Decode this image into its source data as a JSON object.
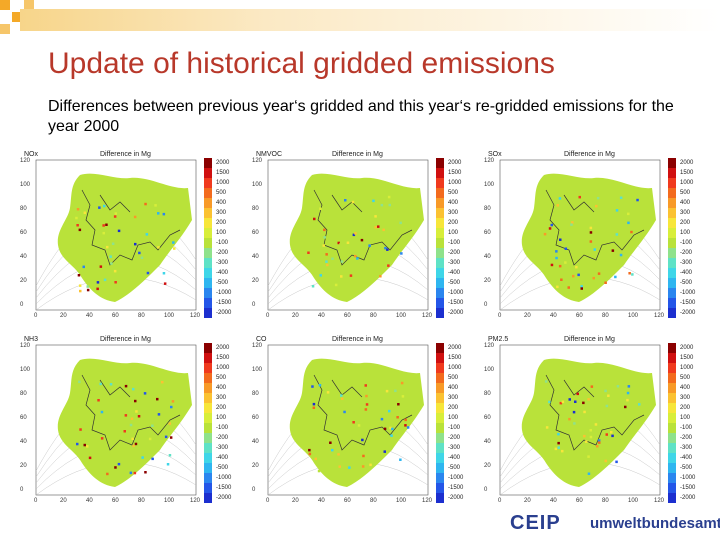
{
  "slide": {
    "title": "Update of historical gridded emissions",
    "subtitle": "Differences between previous year‘s gridded and this year‘s re-gridded emissions for the year 2000"
  },
  "colors": {
    "title": "#b8382a",
    "background_map": "#b9e23a",
    "logo": "#2a3f8f"
  },
  "panel_header": "Difference in Mg",
  "y_ticks": [
    "120",
    "100",
    "80",
    "60",
    "40",
    "20",
    "0"
  ],
  "x_ticks": [
    "0",
    "20",
    "40",
    "60",
    "80",
    "100",
    "120"
  ],
  "colorbar_levels": [
    "2000",
    "1500",
    "1000",
    "500",
    "400",
    "300",
    "200",
    "100",
    "-100",
    "-200",
    "-300",
    "-400",
    "-500",
    "-1000",
    "-1500",
    "-2000"
  ],
  "colorbar_colors": [
    "#8b0000",
    "#d01010",
    "#f03a1e",
    "#f36b1e",
    "#f89a28",
    "#fbc232",
    "#f7e63a",
    "#d8ee3a",
    "#b9e23a",
    "#8fe28b",
    "#5fe2c6",
    "#3fd6e8",
    "#2fb6f0",
    "#2b86ef",
    "#2456e8",
    "#1c2fcf"
  ],
  "panels": [
    {
      "name": "NOx"
    },
    {
      "name": "NMVOC"
    },
    {
      "name": "SOx"
    },
    {
      "name": "NH3"
    },
    {
      "name": "CO"
    },
    {
      "name": "PM2.5"
    }
  ],
  "logos": {
    "ceip": "CEIP",
    "uba": "umweltbundesamt"
  }
}
